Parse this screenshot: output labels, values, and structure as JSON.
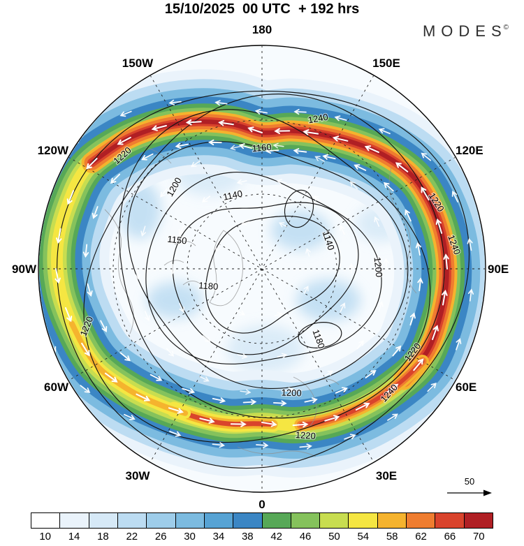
{
  "header": {
    "title": "15/10/2025  00 UTC  + 192 hrs",
    "brand": "MODES",
    "brand_mark": "©"
  },
  "map": {
    "lon_labels": [
      {
        "text": "180"
      },
      {
        "text": "150W"
      },
      {
        "text": "150E"
      },
      {
        "text": "120W"
      },
      {
        "text": "120E"
      },
      {
        "text": "90W"
      },
      {
        "text": "90E"
      },
      {
        "text": "60W"
      },
      {
        "text": "60E"
      },
      {
        "text": "30W"
      },
      {
        "text": "30E"
      },
      {
        "text": "0"
      }
    ],
    "contour_labels": [
      {
        "text": "1160"
      },
      {
        "text": "1240"
      },
      {
        "text": "1220"
      },
      {
        "text": "1200"
      },
      {
        "text": "1140"
      },
      {
        "text": "1140"
      },
      {
        "text": "1150"
      },
      {
        "text": "1180"
      },
      {
        "text": "1180"
      },
      {
        "text": "1200"
      },
      {
        "text": "1220"
      },
      {
        "text": "1240"
      },
      {
        "text": "1220"
      },
      {
        "text": "1220"
      },
      {
        "text": "1240"
      },
      {
        "text": "1200"
      },
      {
        "text": "1220"
      }
    ],
    "contour_values_dam": [
      1140,
      1150,
      1160,
      1180,
      1200,
      1220,
      1240
    ]
  },
  "reference_arrow": {
    "label": "50"
  },
  "colorbar": {
    "values": [
      10,
      14,
      18,
      22,
      26,
      30,
      34,
      38,
      42,
      46,
      50,
      54,
      58,
      62,
      66,
      70
    ],
    "colors": [
      "#ffffff",
      "#eaf3fb",
      "#d6e9f7",
      "#bcdcf2",
      "#9ecdea",
      "#7cbbe0",
      "#57a3d4",
      "#3b86c4",
      "#57a857",
      "#85c25c",
      "#c8dd50",
      "#f5e642",
      "#f5b32e",
      "#ef7d30",
      "#d9432c",
      "#b01f24"
    ]
  },
  "flow": {
    "arrow_color": "#ffffff"
  }
}
